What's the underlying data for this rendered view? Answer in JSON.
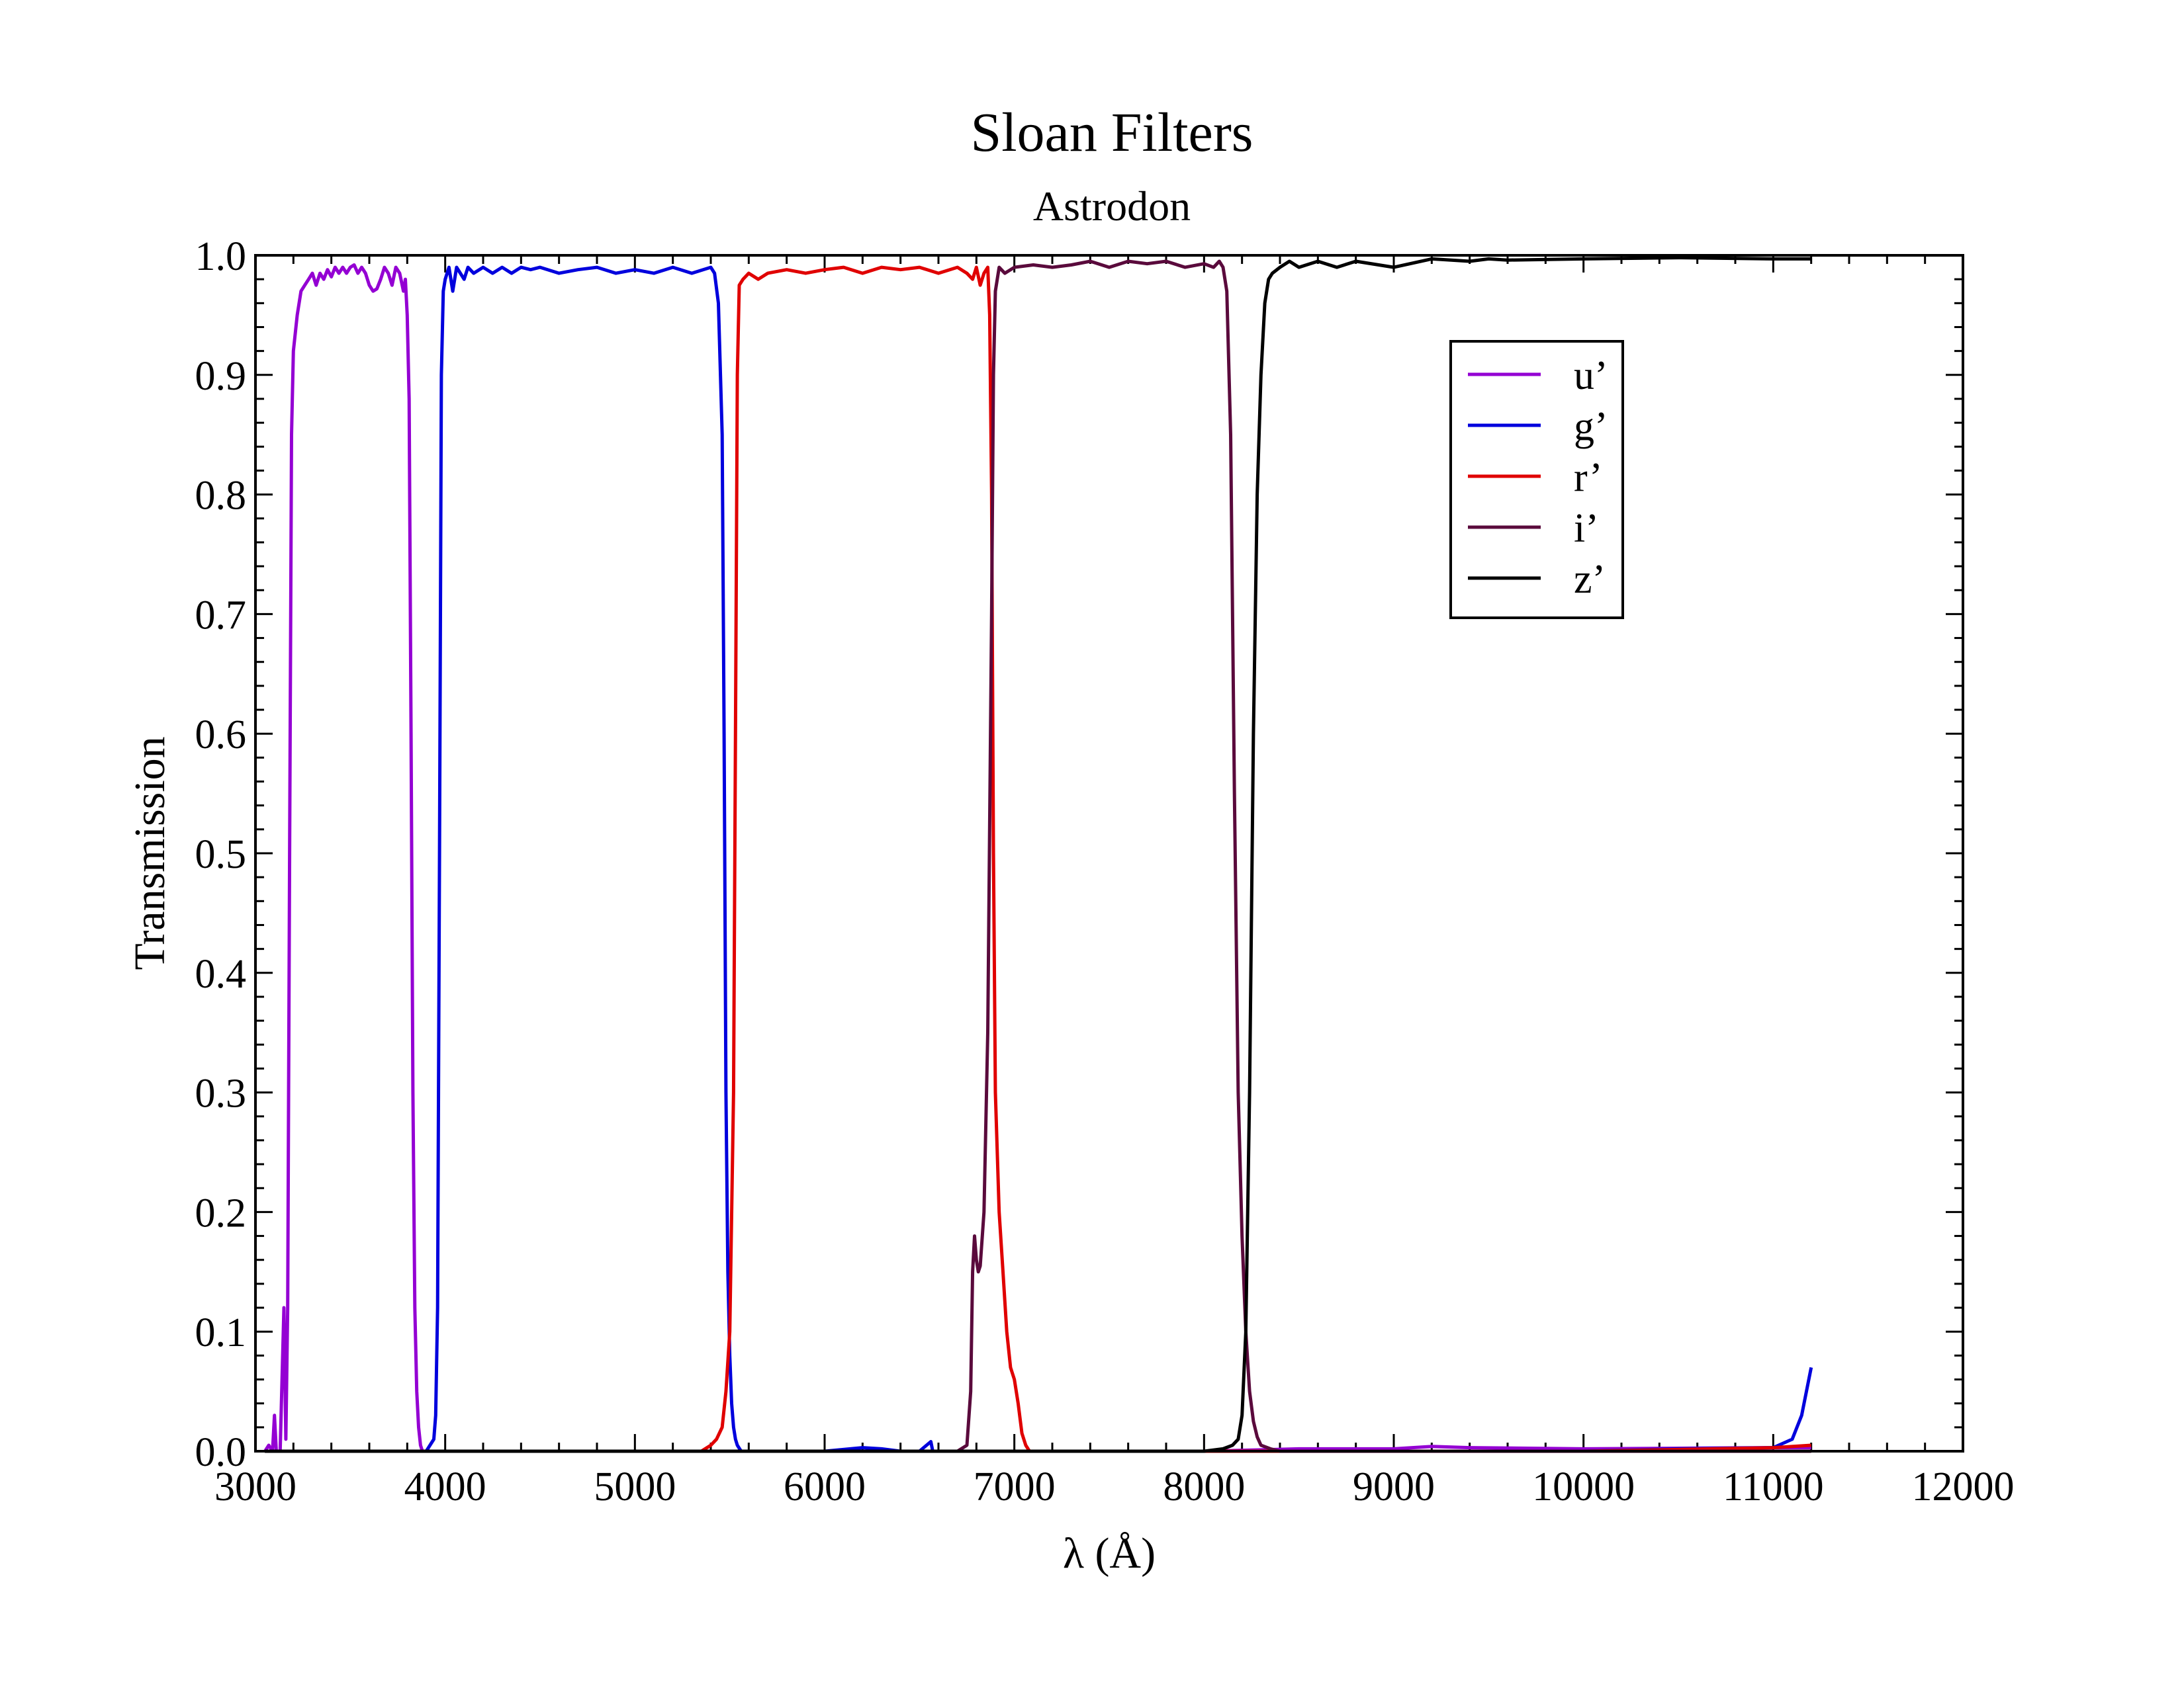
{
  "chart_data": {
    "type": "line",
    "title": "Sloan Filters",
    "subtitle": "Astrodon",
    "xlabel": "λ (Å)",
    "ylabel": "Transmission",
    "xlim": [
      3000,
      12000
    ],
    "ylim": [
      0.0,
      1.0
    ],
    "xticks": [
      3000,
      4000,
      5000,
      6000,
      7000,
      8000,
      9000,
      10000,
      11000,
      12000
    ],
    "xtick_labels": [
      "3000",
      "4000",
      "5000",
      "6000",
      "7000",
      "8000",
      "9000",
      "10000",
      "11000",
      "12000"
    ],
    "yticks": [
      0.0,
      0.1,
      0.2,
      0.3,
      0.4,
      0.5,
      0.6,
      0.7,
      0.8,
      0.9,
      1.0
    ],
    "ytick_labels": [
      "0.0",
      "0.1",
      "0.2",
      "0.3",
      "0.4",
      "0.5",
      "0.6",
      "0.7",
      "0.8",
      "0.9",
      "1.0"
    ],
    "grid": false,
    "legend_position": "top-right",
    "series": [
      {
        "name": "u’",
        "color": "#9400d3",
        "points": [
          [
            3050,
            0.0
          ],
          [
            3070,
            0.005
          ],
          [
            3090,
            0.0
          ],
          [
            3100,
            0.03
          ],
          [
            3110,
            0.0
          ],
          [
            3130,
            0.0
          ],
          [
            3150,
            0.12
          ],
          [
            3160,
            0.01
          ],
          [
            3170,
            0.12
          ],
          [
            3180,
            0.5
          ],
          [
            3190,
            0.85
          ],
          [
            3200,
            0.92
          ],
          [
            3220,
            0.95
          ],
          [
            3240,
            0.97
          ],
          [
            3260,
            0.975
          ],
          [
            3280,
            0.98
          ],
          [
            3300,
            0.985
          ],
          [
            3320,
            0.975
          ],
          [
            3340,
            0.985
          ],
          [
            3360,
            0.98
          ],
          [
            3380,
            0.988
          ],
          [
            3400,
            0.982
          ],
          [
            3420,
            0.99
          ],
          [
            3440,
            0.985
          ],
          [
            3460,
            0.99
          ],
          [
            3480,
            0.985
          ],
          [
            3500,
            0.99
          ],
          [
            3520,
            0.992
          ],
          [
            3540,
            0.985
          ],
          [
            3560,
            0.99
          ],
          [
            3580,
            0.985
          ],
          [
            3600,
            0.975
          ],
          [
            3620,
            0.97
          ],
          [
            3640,
            0.972
          ],
          [
            3660,
            0.98
          ],
          [
            3680,
            0.99
          ],
          [
            3700,
            0.985
          ],
          [
            3720,
            0.975
          ],
          [
            3740,
            0.99
          ],
          [
            3760,
            0.985
          ],
          [
            3780,
            0.97
          ],
          [
            3790,
            0.98
          ],
          [
            3800,
            0.95
          ],
          [
            3810,
            0.88
          ],
          [
            3820,
            0.6
          ],
          [
            3830,
            0.3
          ],
          [
            3840,
            0.12
          ],
          [
            3850,
            0.05
          ],
          [
            3860,
            0.02
          ],
          [
            3870,
            0.005
          ],
          [
            3880,
            0.0
          ],
          [
            3900,
            0.0
          ],
          [
            4000,
            0.0
          ],
          [
            5000,
            0.0
          ],
          [
            6000,
            0.0
          ],
          [
            7000,
            0.0
          ],
          [
            8000,
            0.0
          ],
          [
            8500,
            0.002
          ],
          [
            9000,
            0.002
          ],
          [
            9200,
            0.004
          ],
          [
            9400,
            0.003
          ],
          [
            10000,
            0.002
          ],
          [
            11000,
            0.003
          ],
          [
            11200,
            0.003
          ]
        ]
      },
      {
        "name": "g’",
        "color": "#0000dd",
        "points": [
          [
            3050,
            0.0
          ],
          [
            3800,
            0.0
          ],
          [
            3900,
            0.0
          ],
          [
            3920,
            0.005
          ],
          [
            3940,
            0.01
          ],
          [
            3950,
            0.03
          ],
          [
            3960,
            0.12
          ],
          [
            3970,
            0.5
          ],
          [
            3980,
            0.9
          ],
          [
            3990,
            0.97
          ],
          [
            4000,
            0.98
          ],
          [
            4020,
            0.99
          ],
          [
            4040,
            0.97
          ],
          [
            4060,
            0.99
          ],
          [
            4080,
            0.985
          ],
          [
            4100,
            0.98
          ],
          [
            4120,
            0.99
          ],
          [
            4150,
            0.985
          ],
          [
            4200,
            0.99
          ],
          [
            4250,
            0.985
          ],
          [
            4300,
            0.99
          ],
          [
            4350,
            0.985
          ],
          [
            4400,
            0.99
          ],
          [
            4450,
            0.988
          ],
          [
            4500,
            0.99
          ],
          [
            4600,
            0.985
          ],
          [
            4700,
            0.988
          ],
          [
            4800,
            0.99
          ],
          [
            4900,
            0.985
          ],
          [
            5000,
            0.988
          ],
          [
            5100,
            0.985
          ],
          [
            5200,
            0.99
          ],
          [
            5300,
            0.985
          ],
          [
            5400,
            0.99
          ],
          [
            5420,
            0.985
          ],
          [
            5440,
            0.96
          ],
          [
            5460,
            0.85
          ],
          [
            5470,
            0.6
          ],
          [
            5480,
            0.3
          ],
          [
            5490,
            0.15
          ],
          [
            5500,
            0.08
          ],
          [
            5510,
            0.04
          ],
          [
            5520,
            0.02
          ],
          [
            5530,
            0.01
          ],
          [
            5540,
            0.005
          ],
          [
            5560,
            0.0
          ],
          [
            5600,
            0.0
          ],
          [
            6000,
            0.0
          ],
          [
            6200,
            0.003
          ],
          [
            6300,
            0.002
          ],
          [
            6400,
            0.0
          ],
          [
            6500,
            0.0
          ],
          [
            6560,
            0.008
          ],
          [
            6570,
            0.0
          ],
          [
            7000,
            0.0
          ],
          [
            8000,
            0.0
          ],
          [
            9000,
            0.0
          ],
          [
            10000,
            0.0
          ],
          [
            10500,
            0.002
          ],
          [
            11000,
            0.003
          ],
          [
            11100,
            0.01
          ],
          [
            11150,
            0.03
          ],
          [
            11200,
            0.07
          ]
        ]
      },
      {
        "name": "r’",
        "color": "#e00000",
        "points": [
          [
            3050,
            0.0
          ],
          [
            4000,
            0.0
          ],
          [
            5000,
            0.0
          ],
          [
            5350,
            0.0
          ],
          [
            5400,
            0.005
          ],
          [
            5430,
            0.01
          ],
          [
            5460,
            0.02
          ],
          [
            5480,
            0.05
          ],
          [
            5500,
            0.1
          ],
          [
            5520,
            0.3
          ],
          [
            5530,
            0.6
          ],
          [
            5540,
            0.9
          ],
          [
            5550,
            0.975
          ],
          [
            5570,
            0.98
          ],
          [
            5600,
            0.985
          ],
          [
            5650,
            0.98
          ],
          [
            5700,
            0.985
          ],
          [
            5800,
            0.988
          ],
          [
            5900,
            0.985
          ],
          [
            6000,
            0.988
          ],
          [
            6100,
            0.99
          ],
          [
            6200,
            0.985
          ],
          [
            6300,
            0.99
          ],
          [
            6400,
            0.988
          ],
          [
            6500,
            0.99
          ],
          [
            6600,
            0.985
          ],
          [
            6700,
            0.99
          ],
          [
            6750,
            0.985
          ],
          [
            6780,
            0.98
          ],
          [
            6800,
            0.99
          ],
          [
            6820,
            0.975
          ],
          [
            6840,
            0.985
          ],
          [
            6860,
            0.99
          ],
          [
            6870,
            0.95
          ],
          [
            6880,
            0.8
          ],
          [
            6890,
            0.5
          ],
          [
            6900,
            0.3
          ],
          [
            6920,
            0.2
          ],
          [
            6940,
            0.15
          ],
          [
            6960,
            0.1
          ],
          [
            6980,
            0.07
          ],
          [
            7000,
            0.06
          ],
          [
            7020,
            0.04
          ],
          [
            7040,
            0.015
          ],
          [
            7060,
            0.005
          ],
          [
            7080,
            0.0
          ],
          [
            7200,
            0.0
          ],
          [
            8000,
            0.0
          ],
          [
            9000,
            0.0
          ],
          [
            10000,
            0.0
          ],
          [
            11000,
            0.003
          ],
          [
            11200,
            0.005
          ]
        ]
      },
      {
        "name": "i’",
        "color": "#5a0a3c",
        "points": [
          [
            3050,
            0.0
          ],
          [
            6000,
            0.0
          ],
          [
            6700,
            0.0
          ],
          [
            6750,
            0.005
          ],
          [
            6770,
            0.05
          ],
          [
            6780,
            0.15
          ],
          [
            6790,
            0.18
          ],
          [
            6800,
            0.16
          ],
          [
            6810,
            0.15
          ],
          [
            6820,
            0.155
          ],
          [
            6840,
            0.2
          ],
          [
            6860,
            0.35
          ],
          [
            6880,
            0.7
          ],
          [
            6890,
            0.9
          ],
          [
            6900,
            0.97
          ],
          [
            6920,
            0.99
          ],
          [
            6950,
            0.985
          ],
          [
            7000,
            0.99
          ],
          [
            7100,
            0.992
          ],
          [
            7200,
            0.99
          ],
          [
            7300,
            0.992
          ],
          [
            7400,
            0.995
          ],
          [
            7500,
            0.99
          ],
          [
            7600,
            0.995
          ],
          [
            7700,
            0.993
          ],
          [
            7800,
            0.995
          ],
          [
            7900,
            0.99
          ],
          [
            8000,
            0.993
          ],
          [
            8050,
            0.99
          ],
          [
            8080,
            0.995
          ],
          [
            8100,
            0.99
          ],
          [
            8120,
            0.97
          ],
          [
            8140,
            0.85
          ],
          [
            8160,
            0.55
          ],
          [
            8180,
            0.3
          ],
          [
            8200,
            0.18
          ],
          [
            8220,
            0.1
          ],
          [
            8240,
            0.05
          ],
          [
            8260,
            0.025
          ],
          [
            8280,
            0.012
          ],
          [
            8300,
            0.005
          ],
          [
            8350,
            0.002
          ],
          [
            8400,
            0.0
          ],
          [
            9000,
            0.0
          ],
          [
            10000,
            0.0
          ],
          [
            11200,
            0.0
          ]
        ]
      },
      {
        "name": "z’",
        "color": "#000000",
        "points": [
          [
            3050,
            0.0
          ],
          [
            7000,
            0.0
          ],
          [
            8000,
            0.0
          ],
          [
            8100,
            0.002
          ],
          [
            8150,
            0.005
          ],
          [
            8180,
            0.01
          ],
          [
            8200,
            0.03
          ],
          [
            8220,
            0.1
          ],
          [
            8240,
            0.3
          ],
          [
            8260,
            0.6
          ],
          [
            8280,
            0.8
          ],
          [
            8300,
            0.9
          ],
          [
            8320,
            0.96
          ],
          [
            8340,
            0.98
          ],
          [
            8360,
            0.985
          ],
          [
            8400,
            0.99
          ],
          [
            8450,
            0.995
          ],
          [
            8500,
            0.99
          ],
          [
            8600,
            0.995
          ],
          [
            8700,
            0.99
          ],
          [
            8800,
            0.995
          ],
          [
            9000,
            0.99
          ],
          [
            9200,
            0.997
          ],
          [
            9400,
            0.995
          ],
          [
            9500,
            0.997
          ],
          [
            9600,
            0.996
          ],
          [
            10000,
            0.997
          ],
          [
            10500,
            0.998
          ],
          [
            11000,
            0.997
          ],
          [
            11200,
            0.997
          ]
        ]
      }
    ]
  }
}
